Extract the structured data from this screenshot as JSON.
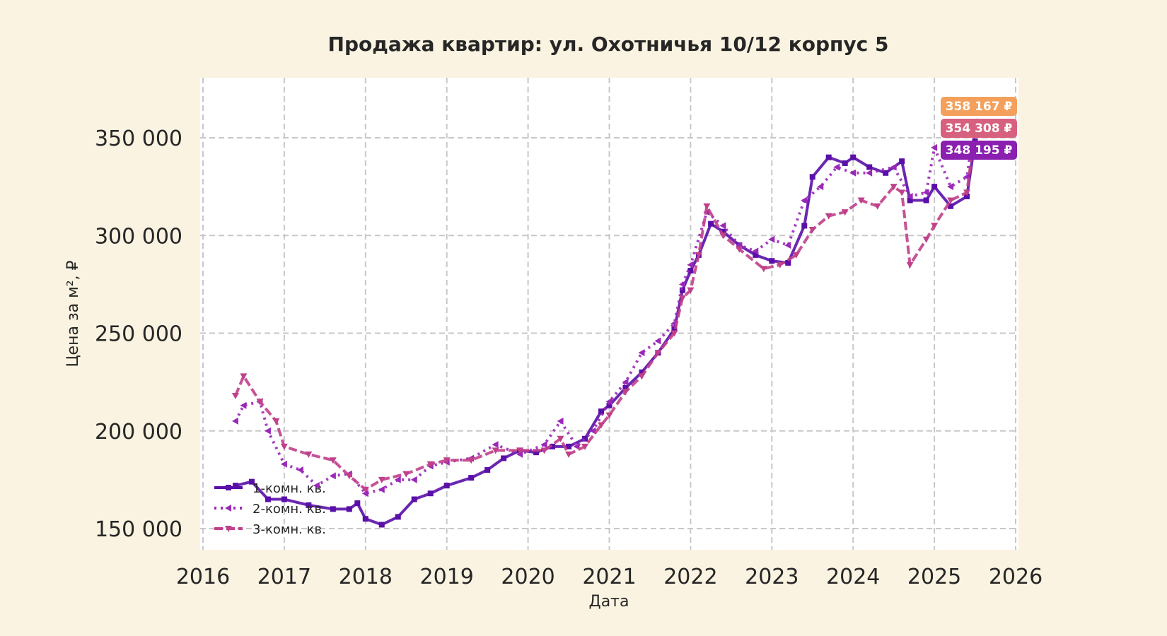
{
  "chart_data": {
    "type": "line",
    "title": "Продажа квартир: ул. Охотничья 10/12 корпус 5",
    "xlabel": "Дата",
    "ylabel": "Цена за м², ₽",
    "xlim": [
      2016,
      2026
    ],
    "ylim": [
      139000,
      381000
    ],
    "x_ticks": [
      "2016",
      "2017",
      "2018",
      "2019",
      "2020",
      "2021",
      "2022",
      "2023",
      "2024",
      "2025",
      "2026"
    ],
    "y_ticks": [
      {
        "value": 150000,
        "label": "150 000"
      },
      {
        "value": 200000,
        "label": "200 000"
      },
      {
        "value": 250000,
        "label": "250 000"
      },
      {
        "value": 300000,
        "label": "300 000"
      },
      {
        "value": 350000,
        "label": "350 000"
      }
    ],
    "grid": true,
    "legend_position": "lower-left",
    "series": [
      {
        "name": "1-комн. кв.",
        "color": "#5a0fa8",
        "marker": "square",
        "dash": "solid",
        "x": [
          2016.4,
          2016.6,
          2016.8,
          2017.0,
          2017.3,
          2017.6,
          2017.8,
          2017.9,
          2018.0,
          2018.2,
          2018.4,
          2018.6,
          2018.8,
          2019.0,
          2019.3,
          2019.5,
          2019.7,
          2019.9,
          2020.1,
          2020.3,
          2020.5,
          2020.7,
          2020.9,
          2021.0,
          2021.2,
          2021.4,
          2021.6,
          2021.8,
          2021.9,
          2022.0,
          2022.1,
          2022.25,
          2022.4,
          2022.6,
          2022.8,
          2023.0,
          2023.2,
          2023.4,
          2023.5,
          2023.7,
          2023.9,
          2024.0,
          2024.2,
          2024.4,
          2024.6,
          2024.7,
          2024.9,
          2025.0,
          2025.2,
          2025.4,
          2025.5
        ],
        "y": [
          172000,
          174000,
          165000,
          165000,
          162000,
          160000,
          160000,
          163000,
          155000,
          152000,
          156000,
          165000,
          168000,
          172000,
          176000,
          180000,
          186000,
          190000,
          189000,
          192000,
          192000,
          196000,
          210000,
          213000,
          222000,
          230000,
          240000,
          252000,
          272000,
          282000,
          290000,
          306000,
          302000,
          295000,
          290000,
          287000,
          286000,
          305000,
          330000,
          340000,
          337000,
          340000,
          335000,
          332000,
          338000,
          318000,
          318000,
          325000,
          315000,
          320000,
          348195
        ]
      },
      {
        "name": "2-комн. кв.",
        "color": "#9a28b8",
        "marker": "triangle-left",
        "dash": "dotted",
        "x": [
          2016.4,
          2016.5,
          2016.7,
          2016.8,
          2017.0,
          2017.2,
          2017.4,
          2017.6,
          2017.8,
          2018.0,
          2018.2,
          2018.4,
          2018.6,
          2018.8,
          2019.0,
          2019.3,
          2019.6,
          2019.9,
          2020.2,
          2020.4,
          2020.6,
          2020.8,
          2021.0,
          2021.2,
          2021.4,
          2021.6,
          2021.8,
          2021.9,
          2022.0,
          2022.2,
          2022.4,
          2022.6,
          2022.8,
          2023.0,
          2023.2,
          2023.4,
          2023.6,
          2023.8,
          2024.0,
          2024.2,
          2024.5,
          2024.7,
          2024.9,
          2025.0,
          2025.2,
          2025.4,
          2025.5
        ],
        "y": [
          205000,
          213000,
          215000,
          200000,
          183000,
          180000,
          172000,
          177000,
          178000,
          168000,
          170000,
          175000,
          175000,
          182000,
          184000,
          186000,
          193000,
          188000,
          193000,
          205000,
          192000,
          200000,
          215000,
          225000,
          240000,
          246000,
          255000,
          275000,
          285000,
          312000,
          305000,
          295000,
          292000,
          298000,
          295000,
          318000,
          325000,
          335000,
          332000,
          332000,
          335000,
          320000,
          322000,
          345000,
          325000,
          330000,
          358167
        ]
      },
      {
        "name": "3-комн. кв.",
        "color": "#c0408a",
        "marker": "triangle-down",
        "dash": "dashed",
        "x": [
          2016.4,
          2016.5,
          2016.7,
          2016.9,
          2017.0,
          2017.3,
          2017.6,
          2017.8,
          2018.0,
          2018.2,
          2018.5,
          2018.8,
          2019.0,
          2019.3,
          2019.6,
          2019.9,
          2020.2,
          2020.4,
          2020.5,
          2020.7,
          2020.9,
          2021.0,
          2021.2,
          2021.4,
          2021.6,
          2021.8,
          2021.9,
          2022.0,
          2022.1,
          2022.2,
          2022.4,
          2022.6,
          2022.9,
          2023.1,
          2023.3,
          2023.5,
          2023.7,
          2023.9,
          2024.1,
          2024.3,
          2024.5,
          2024.6,
          2024.7,
          2024.9,
          2025.0,
          2025.2,
          2025.4,
          2025.5
        ],
        "y": [
          218000,
          228000,
          215000,
          205000,
          192000,
          188000,
          185000,
          177000,
          170000,
          175000,
          178000,
          183000,
          185000,
          185000,
          190000,
          190000,
          190000,
          196000,
          188000,
          192000,
          203000,
          208000,
          220000,
          228000,
          240000,
          250000,
          268000,
          272000,
          290000,
          315000,
          300000,
          293000,
          283000,
          285000,
          290000,
          303000,
          310000,
          312000,
          318000,
          315000,
          325000,
          322000,
          285000,
          298000,
          305000,
          318000,
          322000,
          354308
        ]
      }
    ],
    "end_labels": [
      {
        "text": "358 167 ₽",
        "color": "#f4a05c"
      },
      {
        "text": "354 308 ₽",
        "color": "#d8607f"
      },
      {
        "text": "348 195 ₽",
        "color": "#8a1fb0"
      }
    ]
  }
}
